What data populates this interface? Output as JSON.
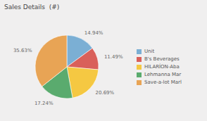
{
  "chart_data": {
    "type": "pie",
    "title": "Sales Details  (#)",
    "categories": [
      "Unit",
      "B's Beverages",
      "HILARÍON-Aba",
      "Lehmanna Mar",
      "Save-a-lot Marl"
    ],
    "values": [
      14.94,
      11.49,
      20.69,
      17.24,
      35.63
    ],
    "value_labels": [
      "14.94%",
      "11.49%",
      "20.69%",
      "17.24%",
      "35.63%"
    ],
    "colors": [
      "#7bafd4",
      "#d9605a",
      "#f5c842",
      "#5aab6e",
      "#e8a455"
    ],
    "data_labels": true,
    "legend": "right"
  }
}
